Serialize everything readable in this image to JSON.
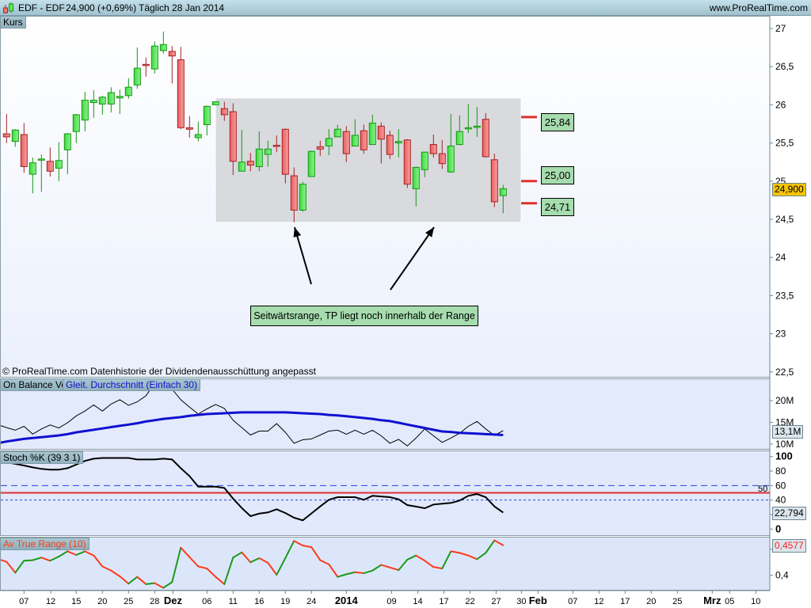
{
  "header": {
    "symbol": "EDF - EDF",
    "price_change": "24,900 (+0,69%)",
    "period_date": "Täglich  28 Jan 2014",
    "website": "www.ProRealTime.com"
  },
  "price_panel": {
    "label": "Kurs",
    "copyright": "© ProRealTime.com  Datenhistorie der Dividendenausschüttung angepasst",
    "last_price_badge": "24,900",
    "y_ticks": [
      "27",
      "26,5",
      "26",
      "25,5",
      "25",
      "24,5",
      "24",
      "23,5",
      "23",
      "22,5"
    ],
    "annotation": "Seitwärtsrange, TP liegt noch innerhalb der Range",
    "levels": [
      {
        "label": "25,84",
        "value": 25.84
      },
      {
        "label": "25,00",
        "value": 25.0
      },
      {
        "label": "24,71",
        "value": 24.71
      }
    ],
    "range_zone": {
      "top": 26.09,
      "bottom": 24.46
    },
    "colors": {
      "up": "#5ee85e",
      "up_border": "#149614",
      "down": "#f07a7a",
      "down_border": "#a82020",
      "level": "#e03030",
      "zone": "#d8dade"
    }
  },
  "obv_panel": {
    "label": "On Balance Vol",
    "ma_label": "Gleit. Durchschnitt (Einfach 30)",
    "y_ticks": [
      "20M",
      "15M",
      "10M"
    ],
    "value_badge": "13,1M"
  },
  "stoch_panel": {
    "label": "Stoch %K (39 3 1)",
    "y_ticks": [
      "100",
      "80",
      "60",
      "40",
      "0"
    ],
    "mid_label": "50",
    "value_badge": "22,794"
  },
  "atr_panel": {
    "label": "Av True Range (10)",
    "y_ticks": [
      "0,4"
    ],
    "value_badge": "0,4577"
  },
  "x_axis": {
    "ticks": [
      "07",
      "12",
      "15",
      "20",
      "25",
      "28",
      "Dez",
      "06",
      "11",
      "16",
      "19",
      "24",
      "2014",
      "09",
      "14",
      "17",
      "22",
      "27",
      "30",
      "Feb",
      "07",
      "12",
      "17",
      "20",
      "25",
      "Mrz",
      "05",
      "10"
    ],
    "bold": [
      "Dez",
      "2014",
      "Feb",
      "Mrz"
    ]
  },
  "chart_data": [
    {
      "type": "candlestick",
      "title": "EDF - EDF",
      "ylim": [
        22.5,
        27.2
      ],
      "ohlc_fields": [
        "open",
        "high",
        "low",
        "close"
      ],
      "ohlc": [
        [
          25.62,
          25.88,
          25.5,
          25.58
        ],
        [
          25.52,
          25.68,
          25.45,
          25.67
        ],
        [
          25.61,
          25.76,
          25.11,
          25.19
        ],
        [
          25.09,
          25.31,
          24.84,
          25.24
        ],
        [
          25.29,
          25.35,
          24.86,
          25.29
        ],
        [
          25.26,
          25.44,
          25.06,
          25.13
        ],
        [
          25.17,
          25.51,
          25.0,
          25.27
        ],
        [
          25.41,
          25.63,
          25.09,
          25.62
        ],
        [
          25.65,
          25.88,
          25.5,
          25.87
        ],
        [
          25.8,
          26.17,
          25.65,
          26.06
        ],
        [
          26.03,
          26.19,
          25.83,
          26.06
        ],
        [
          26.01,
          26.12,
          25.87,
          26.1
        ],
        [
          26.01,
          26.23,
          25.9,
          26.16
        ],
        [
          26.09,
          26.2,
          25.88,
          26.11
        ],
        [
          26.12,
          26.35,
          26.08,
          26.23
        ],
        [
          26.26,
          26.75,
          26.21,
          26.48
        ],
        [
          26.53,
          26.62,
          26.37,
          26.52
        ],
        [
          26.47,
          26.83,
          26.41,
          26.77
        ],
        [
          26.71,
          26.96,
          26.67,
          26.79
        ],
        [
          26.7,
          26.77,
          26.28,
          26.64
        ],
        [
          26.59,
          26.76,
          25.68,
          25.7
        ],
        [
          25.7,
          25.85,
          25.57,
          25.68
        ],
        [
          25.57,
          25.78,
          25.52,
          25.61
        ],
        [
          25.74,
          25.99,
          25.6,
          25.98
        ],
        [
          26.0,
          26.04,
          26.0,
          26.04
        ],
        [
          25.95,
          26.04,
          25.79,
          25.87
        ],
        [
          25.91,
          26.02,
          25.08,
          25.26
        ],
        [
          25.13,
          25.67,
          25.13,
          25.25
        ],
        [
          25.26,
          25.37,
          25.13,
          25.21
        ],
        [
          25.19,
          25.65,
          25.13,
          25.42
        ],
        [
          25.35,
          25.53,
          25.19,
          25.42
        ],
        [
          25.47,
          25.6,
          25.38,
          25.46
        ],
        [
          25.68,
          25.69,
          24.97,
          25.09
        ],
        [
          25.07,
          25.18,
          24.46,
          24.62
        ],
        [
          24.62,
          24.99,
          24.6,
          24.96
        ],
        [
          25.06,
          25.4,
          25.06,
          25.39
        ],
        [
          25.45,
          25.53,
          25.33,
          25.42
        ],
        [
          25.46,
          25.68,
          25.34,
          25.56
        ],
        [
          25.58,
          25.74,
          25.58,
          25.68
        ],
        [
          25.65,
          25.72,
          25.25,
          25.36
        ],
        [
          25.46,
          25.81,
          25.46,
          25.6
        ],
        [
          25.66,
          25.74,
          25.36,
          25.41
        ],
        [
          25.48,
          25.87,
          25.48,
          25.76
        ],
        [
          25.72,
          25.77,
          25.23,
          25.55
        ],
        [
          25.6,
          25.66,
          25.29,
          25.35
        ],
        [
          25.5,
          25.68,
          25.31,
          25.52
        ],
        [
          25.54,
          25.55,
          24.91,
          24.96
        ],
        [
          24.9,
          25.19,
          24.67,
          25.18
        ],
        [
          25.15,
          25.38,
          25.05,
          25.38
        ],
        [
          25.48,
          25.61,
          25.31,
          25.36
        ],
        [
          25.36,
          25.54,
          25.16,
          25.23
        ],
        [
          25.12,
          25.88,
          25.11,
          25.46
        ],
        [
          25.48,
          25.86,
          25.47,
          25.65
        ],
        [
          25.69,
          26.01,
          25.63,
          25.7
        ],
        [
          25.72,
          25.97,
          25.58,
          25.72
        ],
        [
          25.81,
          25.89,
          25.31,
          25.32
        ],
        [
          25.28,
          25.36,
          24.66,
          24.73
        ],
        [
          24.81,
          24.95,
          24.58,
          24.9
        ]
      ]
    },
    {
      "type": "line",
      "ylim": [
        9,
        24.7
      ],
      "series": [
        {
          "name": "On Balance Vol",
          "color": "#000000",
          "values_millions": [
            13.8,
            13.2,
            14.1,
            12.3,
            13.5,
            14.4,
            13.7,
            14.9,
            16.5,
            17.6,
            19.0,
            17.6,
            19.2,
            20.2,
            18.9,
            19.7,
            21.1,
            24.0,
            24.5,
            22.6,
            20.2,
            18.5,
            16.9,
            18.1,
            19.1,
            18.2,
            15.5,
            13.8,
            12.1,
            13.0,
            13.0,
            14.7,
            12.7,
            10.2,
            11.0,
            11.2,
            12.1,
            13.0,
            13.2,
            12.3,
            13.2,
            12.3,
            13.2,
            11.9,
            10.2,
            11.1,
            9.6,
            11.4,
            13.5,
            11.9,
            10.4,
            11.4,
            12.5,
            14.1,
            15.2,
            13.5,
            12.0,
            13.1
          ]
        },
        {
          "name": "Gleit. Durchschnitt (Einfach 30)",
          "color": "#1010d0",
          "values_millions": [
            10.6,
            10.9,
            11.2,
            11.4,
            11.6,
            11.8,
            12.0,
            12.3,
            12.7,
            13.0,
            13.3,
            13.6,
            13.9,
            14.2,
            14.5,
            14.8,
            15.2,
            15.5,
            15.8,
            16.0,
            16.2,
            16.5,
            16.7,
            16.9,
            17.0,
            17.1,
            17.2,
            17.3,
            17.3,
            17.3,
            17.3,
            17.3,
            17.3,
            17.2,
            17.1,
            17.0,
            16.9,
            16.7,
            16.6,
            16.4,
            16.2,
            16.0,
            15.8,
            15.5,
            15.3,
            14.9,
            14.5,
            14.1,
            13.7,
            13.3,
            12.9,
            12.8,
            12.6,
            12.5,
            12.4,
            12.3,
            12.2,
            12.1
          ]
        }
      ]
    },
    {
      "type": "line",
      "ylim": [
        0,
        100
      ],
      "reference_lines": [
        60,
        50,
        40
      ],
      "series": [
        {
          "name": "Stoch %K (39 3 1)",
          "color": "#000000",
          "values": [
            92,
            90,
            87.7,
            85,
            83,
            82,
            82,
            84,
            89,
            94,
            97,
            98,
            98,
            98,
            98,
            96,
            96,
            96,
            97,
            96,
            84,
            73,
            58.5,
            58.5,
            58.5,
            56.7,
            42,
            29,
            17.8,
            21.4,
            22.9,
            27.3,
            22.2,
            15.6,
            12,
            21.6,
            31.2,
            40.4,
            44,
            44,
            44,
            40.4,
            45.8,
            45,
            44,
            41,
            33.1,
            31,
            28.7,
            33.8,
            35,
            36,
            39.3,
            45.8,
            48.4,
            44,
            31.2,
            22.8
          ]
        }
      ]
    },
    {
      "type": "line",
      "series": [
        {
          "name": "Av True Range (10)",
          "up_color": "#1a9a1a",
          "down_color": "#ff3b1a",
          "values": [
            0.426,
            0.405,
            0.428,
            0.429,
            0.434,
            0.428,
            0.436,
            0.446,
            0.439,
            0.446,
            0.438,
            0.417,
            0.409,
            0.398,
            0.384,
            0.397,
            0.383,
            0.385,
            0.376,
            0.387,
            0.453,
            0.435,
            0.417,
            0.413,
            0.397,
            0.383,
            0.434,
            0.444,
            0.425,
            0.433,
            0.424,
            0.401,
            0.433,
            0.466,
            0.457,
            0.454,
            0.429,
            0.421,
            0.397,
            0.402,
            0.406,
            0.404,
            0.409,
            0.42,
            0.415,
            0.41,
            0.43,
            0.438,
            0.428,
            0.416,
            0.413,
            0.446,
            0.443,
            0.438,
            0.431,
            0.443,
            0.467,
            0.4577
          ]
        }
      ]
    }
  ]
}
